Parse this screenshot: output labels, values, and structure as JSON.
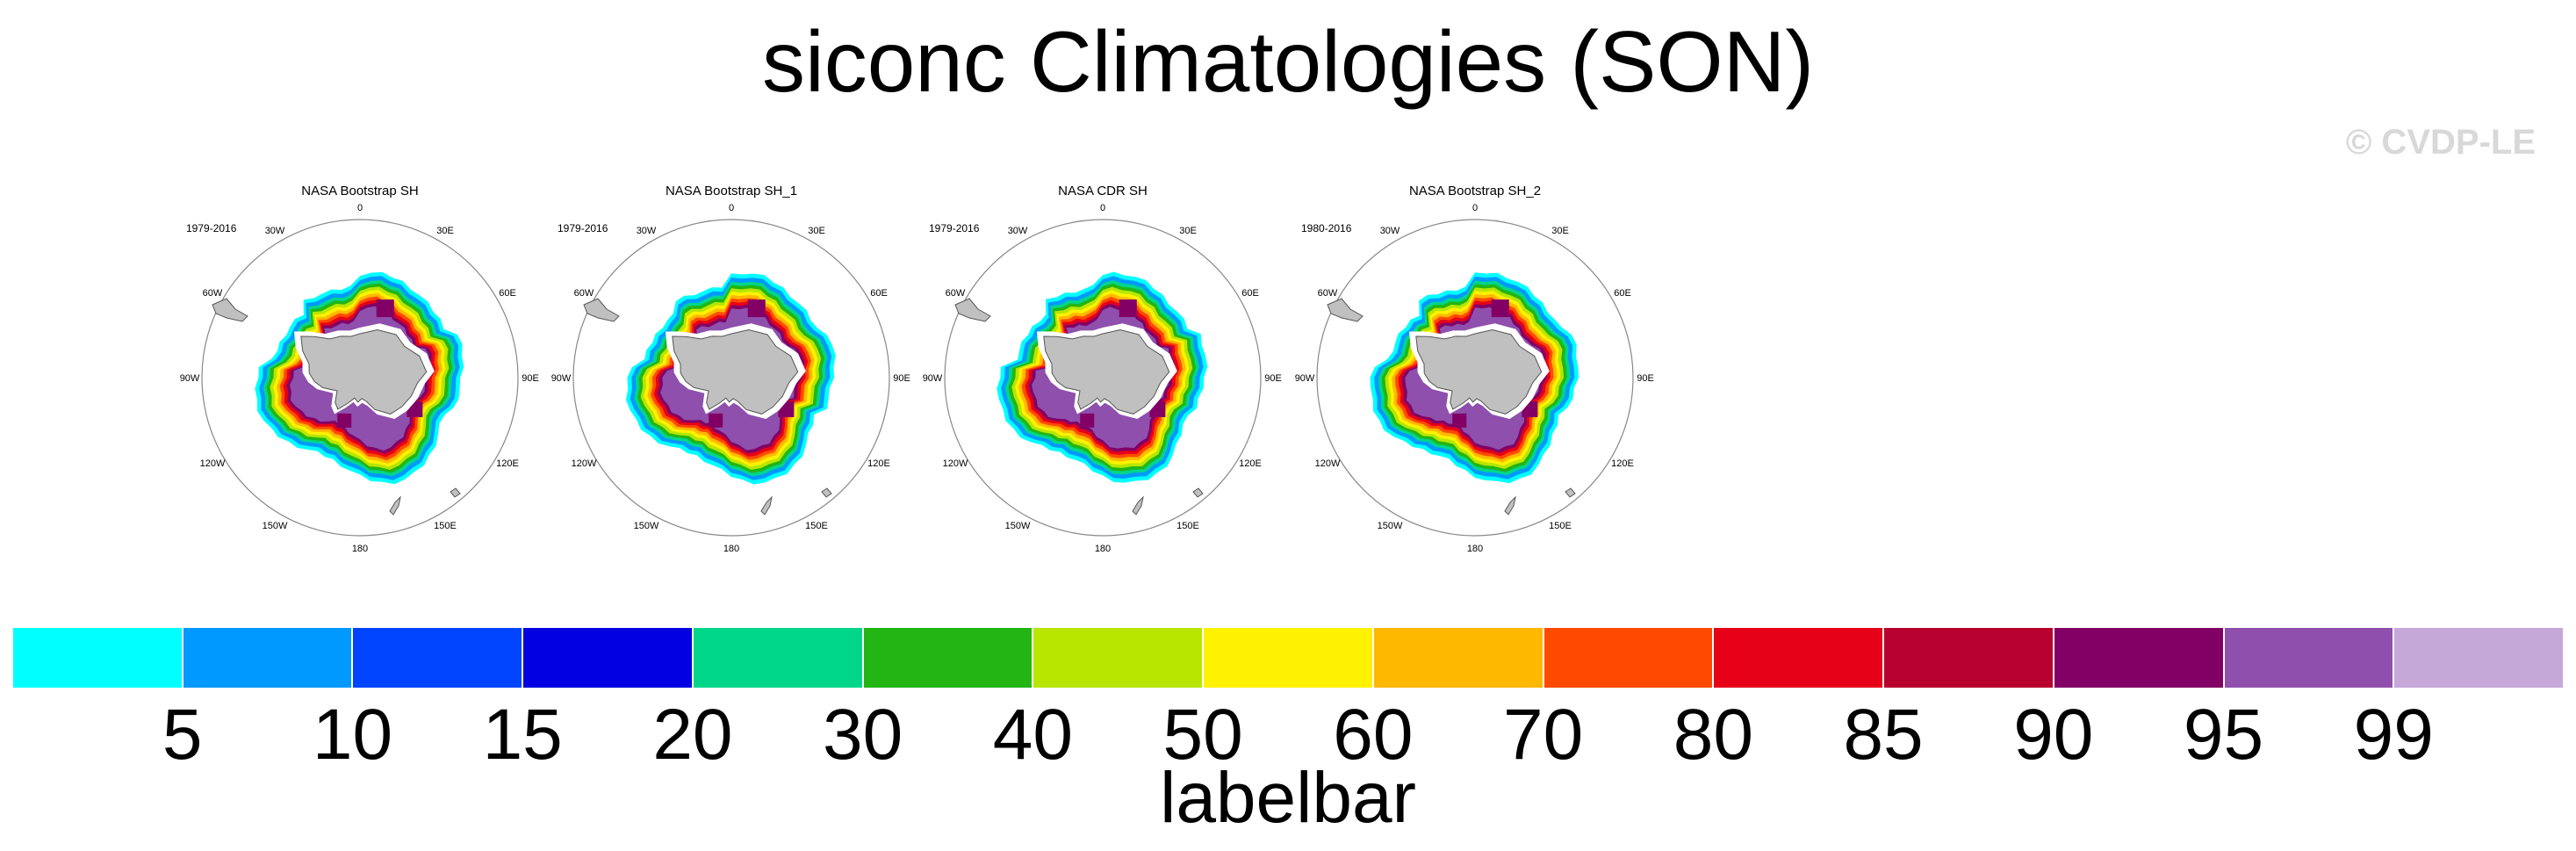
{
  "title": "siconc Climatologies (SON)",
  "watermark": "© CVDP-LE",
  "chart_data": {
    "type": "map",
    "title": "siconc Climatologies (SON)",
    "projection": "south polar stereographic",
    "panels": [
      {
        "name": "NASA Bootstrap SH",
        "period": "1979-2016"
      },
      {
        "name": "NASA Bootstrap SH_1",
        "period": "1979-2016"
      },
      {
        "name": "NASA CDR SH",
        "period": "1979-2016"
      },
      {
        "name": "NASA Bootstrap SH_2",
        "period": "1980-2016"
      }
    ],
    "longitude_labels": [
      "0",
      "30E",
      "60E",
      "90E",
      "120E",
      "150E",
      "180",
      "150W",
      "120W",
      "90W",
      "60W",
      "30W"
    ],
    "colorbar": {
      "label": "labelbar",
      "levels": [
        "5",
        "10",
        "15",
        "20",
        "30",
        "40",
        "50",
        "60",
        "70",
        "80",
        "85",
        "90",
        "95",
        "99"
      ],
      "colors": [
        "#00ffff",
        "#0099ff",
        "#0044ff",
        "#0000e0",
        "#00d68a",
        "#22b514",
        "#b8e600",
        "#fff200",
        "#ffb800",
        "#ff4a00",
        "#e60018",
        "#b8002e",
        "#820066",
        "#8e50ac",
        "#c6a8d8"
      ]
    }
  }
}
